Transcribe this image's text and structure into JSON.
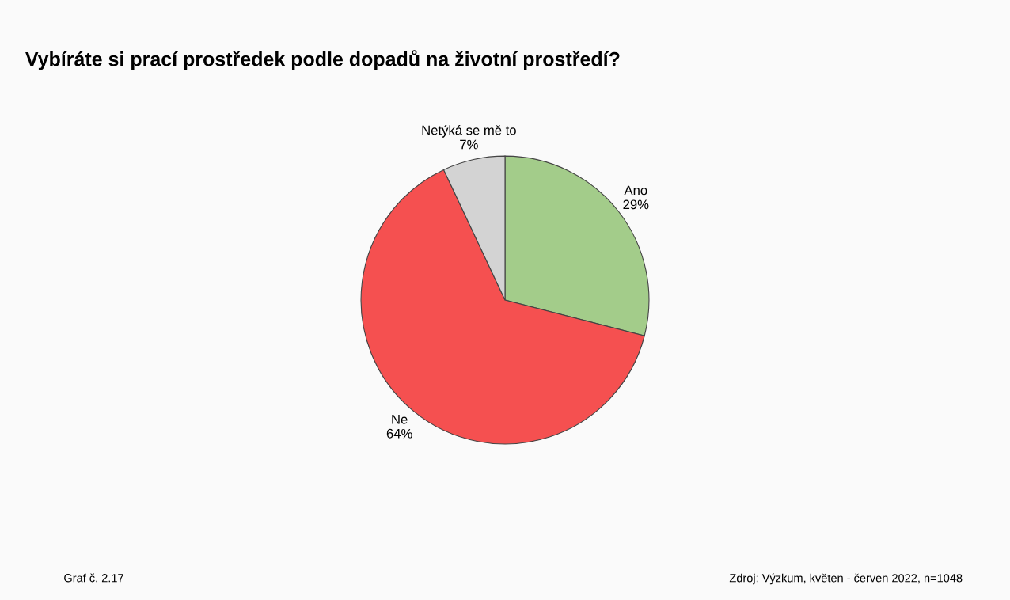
{
  "chart_data": {
    "type": "pie",
    "title": "Vybíráte si prací prostředek podle dopadů na životní prostředí?",
    "categories": [
      "Ano",
      "Ne",
      "Netýká se mě to"
    ],
    "values": [
      29,
      64,
      7
    ],
    "value_labels": [
      "29%",
      "64%",
      "7%"
    ],
    "colors": [
      "#a3cc8a",
      "#f55050",
      "#d3d3d3"
    ],
    "annotations": [
      "Graf č. 2.17",
      "Zdroj: Výzkum, květen - červen 2022, n=1048"
    ]
  }
}
